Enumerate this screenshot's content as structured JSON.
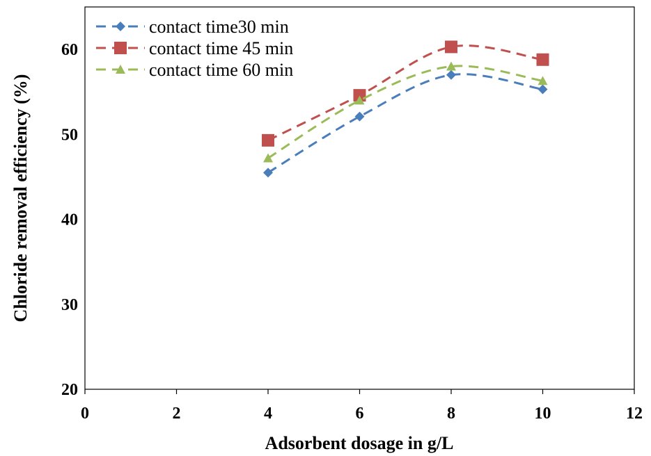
{
  "chart_data": {
    "type": "scatter",
    "xlabel": "Adsorbent dosage in g/L",
    "ylabel": "Chloride removal efficiency (%)",
    "xlim": [
      0,
      12
    ],
    "ylim": [
      20,
      65
    ],
    "x_ticks": [
      "0",
      "2",
      "4",
      "6",
      "8",
      "10",
      "12"
    ],
    "y_ticks": [
      "20",
      "30",
      "40",
      "50",
      "60"
    ],
    "grid": false,
    "legend_position": "top-left",
    "series": [
      {
        "name": "contact time30 min",
        "marker": "diamond",
        "color": "#4a7ebb",
        "x": [
          4,
          6,
          8,
          10
        ],
        "y": [
          45.5,
          52.1,
          57.0,
          55.3
        ]
      },
      {
        "name": "contact time 45 min",
        "marker": "square",
        "color": "#c0504d",
        "x": [
          4,
          6,
          8,
          10
        ],
        "y": [
          49.3,
          54.6,
          60.3,
          58.8
        ]
      },
      {
        "name": "contact time 60 min",
        "marker": "triangle",
        "color": "#9bbb59",
        "x": [
          4,
          6,
          8,
          10
        ],
        "y": [
          47.2,
          54.0,
          58.0,
          56.3
        ]
      }
    ]
  }
}
